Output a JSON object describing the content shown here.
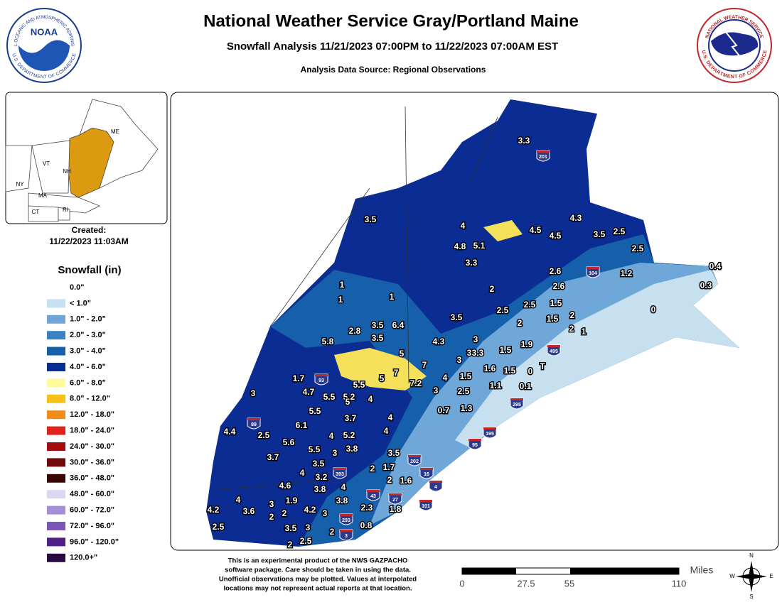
{
  "header": {
    "title": "National Weather Service Gray/Portland Maine",
    "subtitle": "Snowfall Analysis 11/21/2023 07:00PM to 11/22/2023 07:00AM EST",
    "source": "Analysis Data Source: Regional Observations"
  },
  "logos": {
    "noaa": "NOAA",
    "noaa_ring_top": "NATIONAL OCEANIC AND ATMOSPHERIC ADMINISTRATION",
    "noaa_ring_bottom": "U.S. DEPARTMENT OF COMMERCE",
    "nws_ring_top": "NATIONAL WEATHER SERVICE",
    "nws_ring_bottom": "U.S. DEPARTMENT OF COMMERCE"
  },
  "inset": {
    "states": [
      "ME",
      "VT",
      "NH",
      "NY",
      "MA",
      "CT",
      "RI"
    ]
  },
  "created": {
    "label": "Created:",
    "date": "11/22/2023 11:03AM"
  },
  "legend": {
    "title": "Snowfall (in)",
    "entries": [
      {
        "label": "0.0\"",
        "color": "#ffffff"
      },
      {
        "label": "< 1.0\"",
        "color": "#c6e0f0"
      },
      {
        "label": "1.0\" - 2.0\"",
        "color": "#6fa8d8"
      },
      {
        "label": "2.0\" - 3.0\"",
        "color": "#3c82c2"
      },
      {
        "label": "3.0\" - 4.0\"",
        "color": "#1660ab"
      },
      {
        "label": "4.0\" - 6.0\"",
        "color": "#0b2c92"
      },
      {
        "label": "6.0\" - 8.0\"",
        "color": "#fffa9c"
      },
      {
        "label": "8.0\" - 12.0\"",
        "color": "#f5c21a"
      },
      {
        "label": "12.0\" - 18.0\"",
        "color": "#f28a1c"
      },
      {
        "label": "18.0\" - 24.0\"",
        "color": "#e0201a"
      },
      {
        "label": "24.0\" - 30.0\"",
        "color": "#a10d10"
      },
      {
        "label": "30.0\" - 36.0\"",
        "color": "#6e0a0a"
      },
      {
        "label": "36.0\" - 48.0\"",
        "color": "#3a0505"
      },
      {
        "label": "48.0\" - 60.0\"",
        "color": "#dcd6f2"
      },
      {
        "label": "60.0\" - 72.0\"",
        "color": "#a38fd8"
      },
      {
        "label": "72.0\" - 96.0\"",
        "color": "#7a55b8"
      },
      {
        "label": "96.0\" - 120.0\"",
        "color": "#50208a"
      },
      {
        "label": "120.0+\"",
        "color": "#2a0a40"
      }
    ]
  },
  "map": {
    "observations": [
      "3.3",
      "3.5",
      "4",
      "4.8",
      "5.1",
      "3.3",
      "4.5",
      "4.5",
      "4.3",
      "3.5",
      "2.5",
      "2.5",
      "2.6",
      "1.2",
      "0.4",
      "0.3",
      "2.6",
      "2",
      "1",
      "1",
      "1",
      "2.5",
      "1.5",
      "2.5",
      "0",
      "3.5",
      "1.5",
      "2",
      "2",
      "2",
      "1",
      "3.5",
      "6.4",
      "2.8",
      "3.5",
      "3",
      "4.3",
      "1.9",
      "5.8",
      "3",
      "1.5",
      "3.3",
      "5",
      "7",
      "1.6",
      "1.5",
      "0",
      "T",
      "3",
      "4",
      "1.5",
      "7",
      "5",
      "7.2",
      "5.5",
      "1.7",
      "4.7",
      "5.5",
      "5.2",
      "3",
      "2.5",
      "1.1",
      "0.1",
      "3",
      "4",
      "5",
      "5.5",
      "0.7",
      "1.3",
      "3.7",
      "4",
      "6.1",
      "2.5",
      "4",
      "5.2",
      "4",
      "4.4",
      "5.6",
      "3.8",
      "5.5",
      "3",
      "3.7",
      "3.5",
      "3.5",
      "4",
      "3.2",
      "2",
      "1.7",
      "4.6",
      "3.8",
      "4",
      "2",
      "1.6",
      "4",
      "3",
      "1.9",
      "3.8",
      "4.2",
      "3",
      "2.3",
      "1.8",
      "4.2",
      "3.6",
      "2",
      "2",
      "2.5",
      "3.5",
      "3",
      "0.8",
      "2",
      "2",
      "2.5"
    ],
    "interstates": [
      "201",
      "104",
      "495",
      "93",
      "89",
      "393",
      "202",
      "16",
      "4",
      "43",
      "27",
      "101",
      "293",
      "3",
      "95",
      "195",
      "295"
    ]
  },
  "disclaimer": [
    "This is an experimental product of the NWS GAZPACHO",
    "software package. Care should be taken in using the data.",
    "Unofficial observations may be plotted. Values at interpolated",
    "locations may not represent actual reports at that location."
  ],
  "scale": {
    "unit": "Miles",
    "ticks": [
      "0",
      "27.5",
      "55",
      "110"
    ]
  },
  "compass": [
    "N",
    "E",
    "S",
    "W"
  ]
}
